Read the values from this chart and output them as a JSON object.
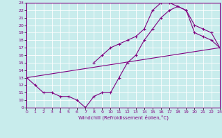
{
  "xlabel": "Windchill (Refroidissement éolien,°C)",
  "bg_color": "#c8ecec",
  "line_color": "#800080",
  "grid_color": "#ffffff",
  "xmin": 0,
  "xmax": 23,
  "ymin": 9,
  "ymax": 23,
  "series": [
    {
      "x": [
        0,
        1,
        2,
        3,
        4,
        5,
        6,
        7,
        8,
        9,
        10,
        11,
        12,
        13,
        14,
        15,
        16,
        17,
        18,
        19,
        20,
        21,
        22,
        23
      ],
      "y": [
        13,
        12,
        11,
        11,
        10.5,
        10.5,
        10,
        9,
        10.5,
        11,
        11,
        13,
        15,
        16,
        18,
        19.5,
        21,
        22,
        22.5,
        22,
        19,
        18.5,
        18,
        17
      ]
    },
    {
      "x": [
        0,
        23
      ],
      "y": [
        13,
        17
      ]
    },
    {
      "x": [
        8,
        9,
        10,
        11,
        12,
        13,
        14,
        15,
        16,
        17,
        18,
        19,
        20,
        21,
        22,
        23
      ],
      "y": [
        15,
        16,
        17,
        17.5,
        18,
        18.5,
        19.5,
        22,
        23,
        23,
        22.5,
        22,
        20,
        19.5,
        19,
        17
      ]
    }
  ]
}
